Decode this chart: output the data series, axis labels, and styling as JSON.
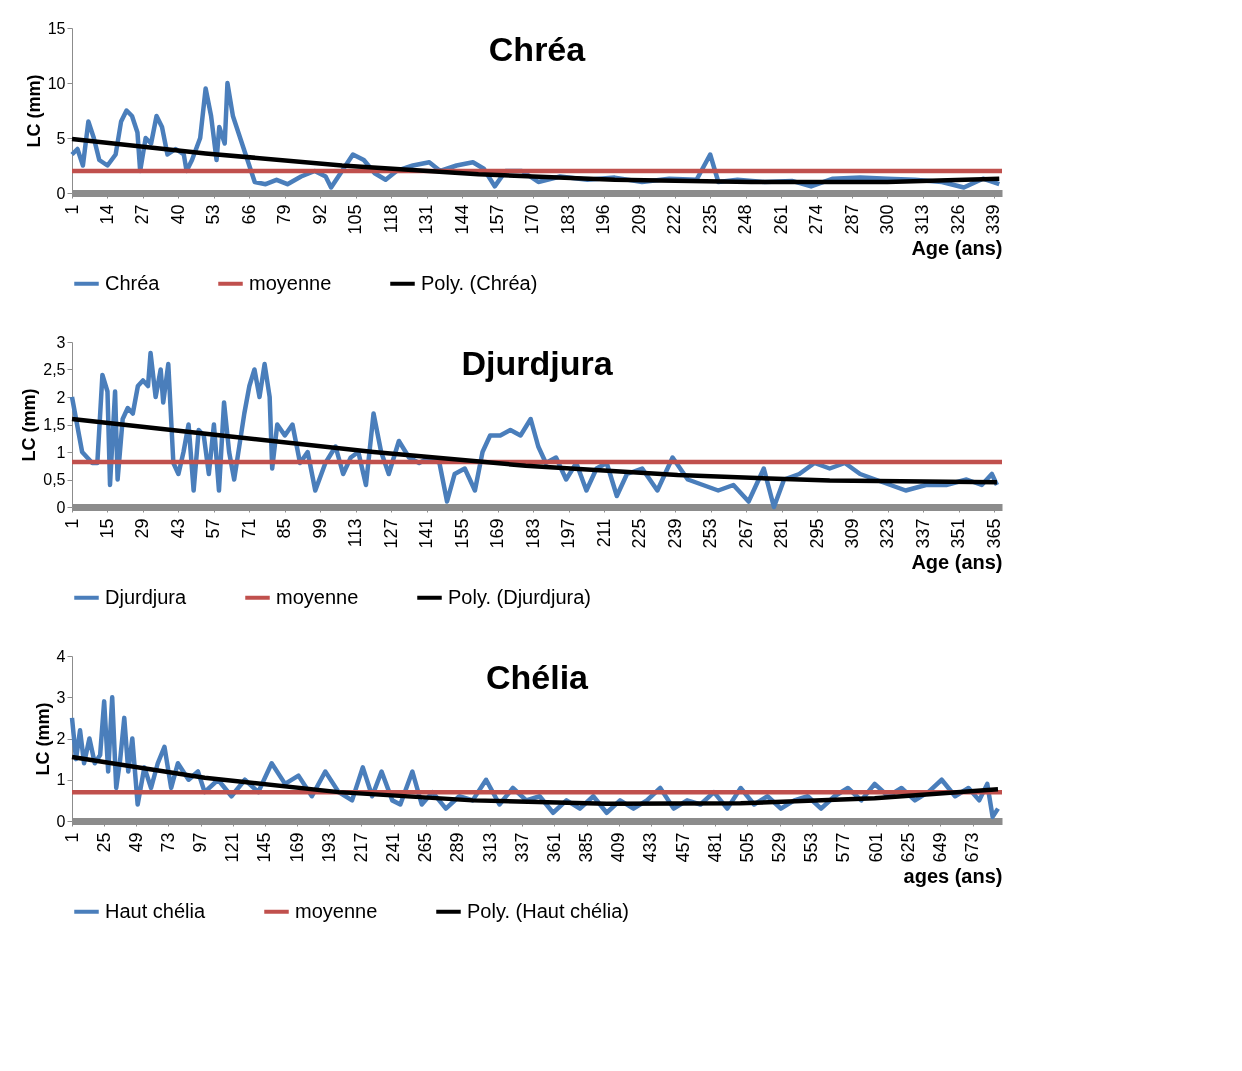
{
  "chart_data": [
    {
      "type": "line",
      "title": "Chréa",
      "xlabel": "Age (ans)",
      "ylabel": "LC (mm)",
      "xlim": [
        1,
        342
      ],
      "xticks": [
        1,
        14,
        27,
        40,
        53,
        66,
        79,
        92,
        105,
        118,
        131,
        144,
        157,
        170,
        183,
        196,
        209,
        222,
        235,
        248,
        261,
        274,
        287,
        300,
        313,
        326,
        339
      ],
      "ylim": [
        0,
        15
      ],
      "yticks": [
        0,
        5,
        10,
        15
      ],
      "grid": false,
      "legend": "bottom",
      "series": [
        {
          "name": "Chréa",
          "color": "#4a7ebb",
          "x": [
            1,
            3,
            5,
            7,
            9,
            11,
            14,
            17,
            19,
            21,
            23,
            25,
            26,
            28,
            30,
            32,
            34,
            36,
            39,
            42,
            43,
            45,
            48,
            50,
            52,
            54,
            55,
            57,
            58,
            60,
            62,
            64,
            66,
            68,
            72,
            76,
            80,
            85,
            90,
            94,
            96,
            100,
            104,
            108,
            112,
            116,
            120,
            126,
            132,
            136,
            142,
            148,
            152,
            156,
            160,
            166,
            172,
            180,
            190,
            200,
            210,
            220,
            230,
            235,
            238,
            245,
            255,
            265,
            272,
            280,
            290,
            300,
            310,
            320,
            328,
            335,
            341
          ],
          "values": [
            3.5,
            4,
            2.5,
            6.5,
            5,
            3,
            2.5,
            3.5,
            6.5,
            7.5,
            7,
            5.5,
            2,
            5,
            4.5,
            7,
            6,
            3.5,
            4,
            3.5,
            2,
            3,
            5,
            9.5,
            7,
            3,
            6,
            4.5,
            10,
            7,
            5.5,
            4,
            2.5,
            1,
            0.8,
            1.2,
            0.8,
            1.5,
            2,
            1.5,
            0.5,
            2,
            3.5,
            3,
            1.8,
            1.2,
            2,
            2.5,
            2.8,
            2,
            2.5,
            2.8,
            2.2,
            0.6,
            2,
            2,
            1,
            1.5,
            1.2,
            1.4,
            1,
            1.3,
            1.2,
            3.5,
            1,
            1.2,
            1,
            1.1,
            0.6,
            1.3,
            1.4,
            1.3,
            1.2,
            1,
            0.5,
            1.3,
            0.8
          ]
        },
        {
          "name": "moyenne",
          "color": "#c0504d",
          "x": [
            1,
            342
          ],
          "values": [
            2,
            2
          ]
        },
        {
          "name": "Poly. (Chréa)",
          "color": "#000000",
          "x": [
            1,
            50,
            100,
            150,
            200,
            250,
            300,
            341
          ],
          "values": [
            4.9,
            3.6,
            2.5,
            1.7,
            1.2,
            1.0,
            1.0,
            1.3
          ]
        }
      ]
    },
    {
      "type": "line",
      "title": "Djurdjura",
      "xlabel": "Age (ans)",
      "ylabel": "LC (mm)",
      "xlim": [
        1,
        368
      ],
      "xticks": [
        1,
        15,
        29,
        43,
        57,
        71,
        85,
        99,
        113,
        127,
        141,
        155,
        169,
        183,
        197,
        211,
        225,
        239,
        253,
        267,
        281,
        295,
        309,
        323,
        337,
        351,
        365
      ],
      "ylim": [
        0,
        3
      ],
      "yticks": [
        0,
        {
          "value": 0.5,
          "label": "0,5"
        },
        1,
        {
          "value": 1.5,
          "label": "1,5"
        },
        2,
        {
          "value": 2.5,
          "label": "2,5"
        },
        3
      ],
      "grid": false,
      "legend": "bottom",
      "series": [
        {
          "name": "Djurdjura",
          "color": "#4a7ebb",
          "x": [
            1,
            3,
            5,
            7,
            9,
            11,
            13,
            15,
            16,
            18,
            19,
            21,
            23,
            25,
            27,
            29,
            31,
            32,
            34,
            36,
            37,
            39,
            41,
            43,
            45,
            47,
            49,
            51,
            53,
            55,
            57,
            59,
            61,
            63,
            65,
            67,
            69,
            71,
            73,
            75,
            77,
            79,
            80,
            82,
            85,
            88,
            91,
            94,
            97,
            101,
            105,
            108,
            111,
            114,
            117,
            120,
            123,
            126,
            130,
            134,
            138,
            142,
            146,
            149,
            152,
            156,
            160,
            163,
            166,
            170,
            174,
            178,
            182,
            185,
            188,
            192,
            196,
            200,
            204,
            208,
            212,
            216,
            220,
            226,
            232,
            238,
            244,
            250,
            256,
            262,
            268,
            274,
            278,
            282,
            288,
            294,
            300,
            306,
            312,
            318,
            324,
            330,
            338,
            346,
            354,
            360,
            364,
            366
          ],
          "values": [
            2,
            1.5,
            1,
            0.9,
            0.8,
            0.8,
            2.4,
            2.1,
            0.4,
            2.1,
            0.5,
            1.6,
            1.8,
            1.7,
            2.2,
            2.3,
            2.2,
            2.8,
            2,
            2.5,
            1.9,
            2.6,
            0.8,
            0.6,
            1,
            1.5,
            0.3,
            1.4,
            1.3,
            0.6,
            1.5,
            0.3,
            1.9,
            1,
            0.5,
            1.1,
            1.7,
            2.2,
            2.5,
            2,
            2.6,
            2,
            0.7,
            1.5,
            1.3,
            1.5,
            0.8,
            1,
            0.3,
            0.8,
            1.1,
            0.6,
            0.9,
            1,
            0.4,
            1.7,
            1,
            0.6,
            1.2,
            0.9,
            0.8,
            0.9,
            0.8,
            0.1,
            0.6,
            0.7,
            0.3,
            1,
            1.3,
            1.3,
            1.4,
            1.3,
            1.6,
            1.1,
            0.8,
            0.9,
            0.5,
            0.8,
            0.3,
            0.7,
            0.8,
            0.2,
            0.6,
            0.7,
            0.3,
            0.9,
            0.5,
            0.4,
            0.3,
            0.4,
            0.1,
            0.7,
            0,
            0.5,
            0.6,
            0.8,
            0.7,
            0.8,
            0.6,
            0.5,
            0.4,
            0.3,
            0.4,
            0.4,
            0.5,
            0.4,
            0.6,
            0.4
          ]
        },
        {
          "name": "moyenne",
          "color": "#c0504d",
          "x": [
            1,
            368
          ],
          "values": [
            0.82,
            0.82
          ]
        },
        {
          "name": "Poly. (Djurdjura)",
          "color": "#000000",
          "x": [
            1,
            60,
            120,
            180,
            240,
            300,
            366
          ],
          "values": [
            1.6,
            1.3,
            1.0,
            0.75,
            0.58,
            0.48,
            0.45
          ]
        }
      ]
    },
    {
      "type": "line",
      "title": "Chélia",
      "xlabel": "ages (ans)",
      "ylabel": "LC (mm)",
      "xlim": [
        1,
        695
      ],
      "xticks": [
        1,
        25,
        49,
        73,
        97,
        121,
        145,
        169,
        193,
        217,
        241,
        265,
        289,
        313,
        337,
        361,
        385,
        409,
        433,
        457,
        481,
        505,
        529,
        553,
        577,
        601,
        625,
        649,
        673
      ],
      "ylim": [
        0,
        4
      ],
      "yticks": [
        0,
        1,
        2,
        3,
        4
      ],
      "grid": false,
      "legend": "bottom",
      "series": [
        {
          "name": "Haut chélia",
          "color": "#4a7ebb",
          "x": [
            1,
            4,
            7,
            10,
            14,
            18,
            22,
            25,
            28,
            31,
            34,
            37,
            40,
            43,
            46,
            50,
            55,
            60,
            65,
            70,
            75,
            80,
            88,
            95,
            100,
            110,
            120,
            130,
            140,
            150,
            160,
            170,
            180,
            190,
            200,
            210,
            218,
            225,
            232,
            240,
            246,
            255,
            262,
            270,
            280,
            290,
            300,
            310,
            320,
            330,
            340,
            350,
            360,
            370,
            380,
            390,
            400,
            410,
            420,
            430,
            440,
            450,
            460,
            470,
            480,
            490,
            500,
            510,
            520,
            530,
            540,
            550,
            560,
            570,
            580,
            590,
            600,
            610,
            620,
            630,
            640,
            650,
            660,
            670,
            678,
            684,
            688,
            692
          ],
          "values": [
            2.5,
            1.5,
            2.2,
            1.4,
            2,
            1.4,
            1.6,
            2.9,
            1.2,
            3,
            0.8,
            1.5,
            2.5,
            1.2,
            2,
            0.4,
            1.3,
            0.8,
            1.4,
            1.8,
            0.8,
            1.4,
            1,
            1.2,
            0.7,
            1,
            0.6,
            1,
            0.7,
            1.4,
            0.9,
            1.1,
            0.6,
            1.2,
            0.7,
            0.5,
            1.3,
            0.6,
            1.2,
            0.5,
            0.4,
            1.2,
            0.4,
            0.7,
            0.3,
            0.6,
            0.5,
            1,
            0.4,
            0.8,
            0.5,
            0.6,
            0.2,
            0.5,
            0.3,
            0.6,
            0.2,
            0.5,
            0.3,
            0.5,
            0.8,
            0.3,
            0.5,
            0.4,
            0.7,
            0.3,
            0.8,
            0.4,
            0.6,
            0.3,
            0.5,
            0.6,
            0.3,
            0.6,
            0.8,
            0.5,
            0.9,
            0.6,
            0.8,
            0.5,
            0.7,
            1,
            0.6,
            0.8,
            0.5,
            0.9,
            0.1,
            0.3
          ]
        },
        {
          "name": "moyenne",
          "color": "#c0504d",
          "x": [
            1,
            695
          ],
          "values": [
            0.7,
            0.7
          ]
        },
        {
          "name": "Poly. (Haut chélia)",
          "color": "#000000",
          "x": [
            1,
            100,
            200,
            300,
            400,
            500,
            600,
            692
          ],
          "values": [
            1.55,
            1.05,
            0.7,
            0.5,
            0.42,
            0.43,
            0.55,
            0.77
          ]
        }
      ]
    }
  ]
}
